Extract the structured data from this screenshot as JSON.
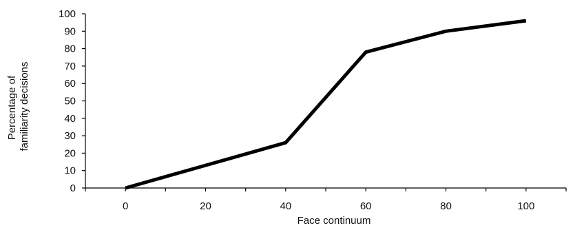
{
  "chart_data": {
    "type": "line",
    "title": "",
    "xlabel": "Face continuum",
    "ylabel": [
      "Percentage of",
      "familiarity decisions"
    ],
    "x": [
      0,
      20,
      40,
      60,
      80,
      100
    ],
    "series": [
      {
        "values": [
          0,
          13,
          26,
          78,
          90,
          96
        ]
      }
    ],
    "x_ticks": [
      0,
      20,
      40,
      60,
      80,
      100
    ],
    "y_ticks": [
      0,
      10,
      20,
      30,
      40,
      50,
      60,
      70,
      80,
      90,
      100
    ],
    "xlim": [
      -10,
      110
    ],
    "ylim": [
      0,
      100
    ],
    "grid": false,
    "legend": "none",
    "colors": {
      "line": "#000000",
      "axis": "#000000"
    }
  }
}
